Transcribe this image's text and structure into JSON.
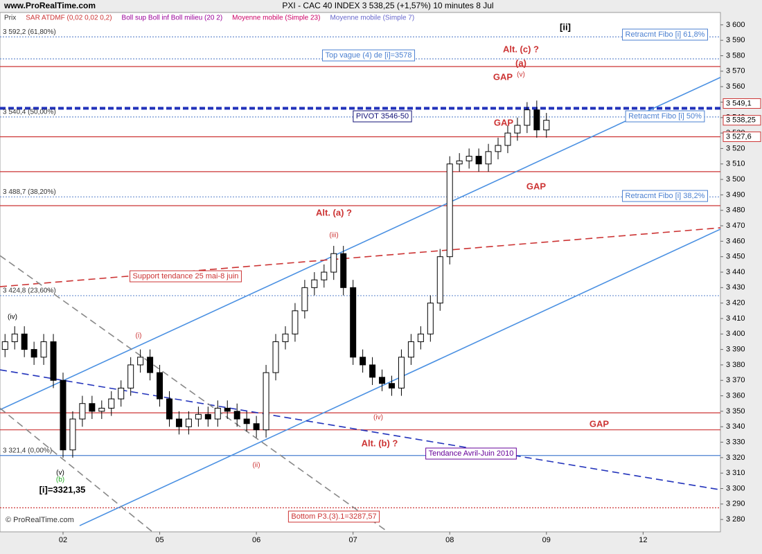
{
  "chart_data": {
    "type": "candlestick",
    "site": "www.ProRealTime.com",
    "title": "PXI - CAC 40 INDEX     3 538,25 (+1,57%)     10 minutes  8 Jul",
    "legend": [
      "Prix",
      "SAR ATDMF (0,02 0,02 0,2)",
      "Boll sup Boll inf Boll milieu (20 2)",
      "Moyenne mobile (Simple 23)",
      "Moyenne mobile (Simple 7)"
    ],
    "legend_colors": [
      "#333333",
      "#cc3333",
      "#990099",
      "#cc0066",
      "#6666cc"
    ],
    "footer": "© ProRealTime.com",
    "xlim": [
      -0.652,
      6.8
    ],
    "xticks": [
      {
        "value": 0,
        "label": "02"
      },
      {
        "value": 1,
        "label": "05"
      },
      {
        "value": 2,
        "label": "06"
      },
      {
        "value": 3,
        "label": "07"
      },
      {
        "value": 4,
        "label": "08"
      },
      {
        "value": 5,
        "label": "09"
      },
      {
        "value": 6,
        "label": "12"
      }
    ],
    "ylim": [
      3272,
      3608
    ],
    "yticks": [
      {
        "value": 3280,
        "label": "3 280"
      },
      {
        "value": 3290,
        "label": "3 290"
      },
      {
        "value": 3300,
        "label": "3 300"
      },
      {
        "value": 3310,
        "label": "3 310"
      },
      {
        "value": 3320,
        "label": "3 320"
      },
      {
        "value": 3330,
        "label": "3 330"
      },
      {
        "value": 3340,
        "label": "3 340"
      },
      {
        "value": 3350,
        "label": "3 350"
      },
      {
        "value": 3360,
        "label": "3 360"
      },
      {
        "value": 3370,
        "label": "3 370"
      },
      {
        "value": 3380,
        "label": "3 380"
      },
      {
        "value": 3390,
        "label": "3 390"
      },
      {
        "value": 3400,
        "label": "3 400"
      },
      {
        "value": 3410,
        "label": "3 410"
      },
      {
        "value": 3420,
        "label": "3 420"
      },
      {
        "value": 3430,
        "label": "3 430"
      },
      {
        "value": 3440,
        "label": "3 440"
      },
      {
        "value": 3450,
        "label": "3 450"
      },
      {
        "value": 3460,
        "label": "3 460"
      },
      {
        "value": 3470,
        "label": "3 470"
      },
      {
        "value": 3480,
        "label": "3 480"
      },
      {
        "value": 3490,
        "label": "3 490"
      },
      {
        "value": 3500,
        "label": "3 500"
      },
      {
        "value": 3510,
        "label": "3 510"
      },
      {
        "value": 3520,
        "label": "3 520"
      },
      {
        "value": 3530,
        "label": "3 530"
      },
      {
        "value": 3540,
        "label": "3 540"
      },
      {
        "value": 3550,
        "label": "3 550"
      },
      {
        "value": 3560,
        "label": "3 560"
      },
      {
        "value": 3570,
        "label": "3 570"
      },
      {
        "value": 3580,
        "label": "3 580"
      },
      {
        "value": 3590,
        "label": "3 590"
      },
      {
        "value": 3600,
        "label": "3 600"
      }
    ],
    "x": [
      -0.6,
      -0.5,
      -0.4,
      -0.3,
      -0.2,
      -0.1,
      0,
      0.1,
      0.2,
      0.3,
      0.4,
      0.5,
      0.6,
      0.7,
      0.8,
      0.9,
      1,
      1.1,
      1.2,
      1.3,
      1.4,
      1.5,
      1.6,
      1.7,
      1.8,
      1.9,
      2,
      2.1,
      2.2,
      2.3,
      2.4,
      2.5,
      2.6,
      2.7,
      2.8,
      2.9,
      3,
      3.1,
      3.2,
      3.3,
      3.4,
      3.5,
      3.6,
      3.7,
      3.8,
      3.9,
      4,
      4.1,
      4.2,
      4.3,
      4.4,
      4.5,
      4.6,
      4.7,
      4.8,
      4.9,
      5
    ],
    "open": [
      3390,
      3395,
      3400,
      3390,
      3385,
      3395,
      3370,
      3325,
      3345,
      3355,
      3350,
      3352,
      3358,
      3365,
      3380,
      3385,
      3375,
      3358,
      3345,
      3340,
      3345,
      3348,
      3345,
      3352,
      3350,
      3345,
      3342,
      3338,
      3375,
      3395,
      3400,
      3415,
      3430,
      3435,
      3440,
      3452,
      3430,
      3385,
      3380,
      3372,
      3368,
      3365,
      3385,
      3395,
      3400,
      3420,
      3450,
      3510,
      3512,
      3515,
      3510,
      3518,
      3522,
      3530,
      3535,
      3545,
      3532
    ],
    "high": [
      3400,
      3405,
      3405,
      3395,
      3400,
      3400,
      3375,
      3350,
      3360,
      3360,
      3357,
      3363,
      3370,
      3385,
      3390,
      3390,
      3380,
      3363,
      3350,
      3350,
      3353,
      3353,
      3357,
      3357,
      3355,
      3350,
      3347,
      3380,
      3400,
      3405,
      3420,
      3435,
      3440,
      3445,
      3457,
      3457,
      3435,
      3390,
      3385,
      3377,
      3373,
      3390,
      3400,
      3405,
      3425,
      3455,
      3515,
      3517,
      3520,
      3520,
      3523,
      3527,
      3535,
      3540,
      3550,
      3551,
      3543
    ],
    "low": [
      3385,
      3390,
      3385,
      3380,
      3380,
      3365,
      3320,
      3320,
      3340,
      3345,
      3345,
      3347,
      3353,
      3360,
      3375,
      3370,
      3353,
      3340,
      3335,
      3335,
      3340,
      3340,
      3340,
      3345,
      3340,
      3337,
      3333,
      3333,
      3370,
      3390,
      3395,
      3410,
      3425,
      3430,
      3435,
      3425,
      3380,
      3375,
      3367,
      3363,
      3360,
      3360,
      3380,
      3390,
      3395,
      3415,
      3445,
      3505,
      3507,
      3505,
      3505,
      3513,
      3517,
      3525,
      3530,
      3527,
      3527
    ],
    "close": [
      3395,
      3400,
      3390,
      3385,
      3395,
      3370,
      3325,
      3345,
      3355,
      3350,
      3352,
      3358,
      3365,
      3380,
      3385,
      3375,
      3358,
      3345,
      3340,
      3345,
      3348,
      3345,
      3352,
      3350,
      3345,
      3342,
      3338,
      3375,
      3395,
      3400,
      3415,
      3430,
      3435,
      3440,
      3452,
      3430,
      3385,
      3380,
      3372,
      3368,
      3365,
      3385,
      3395,
      3400,
      3420,
      3450,
      3510,
      3512,
      3515,
      3510,
      3518,
      3522,
      3530,
      3535,
      3545,
      3532,
      3538.25
    ],
    "levels": [
      {
        "value": 3592.2,
        "label": "3 592,2 (61,80%)",
        "color": "#6a8fd0",
        "style": "dotted"
      },
      {
        "value": 3578,
        "color": "#6a8fd0",
        "style": "dotted"
      },
      {
        "value": 3573,
        "color": "#cc3333",
        "style": "solid"
      },
      {
        "value": 3546,
        "color": "#2233bb",
        "style": "thick"
      },
      {
        "value": 3540.4,
        "label": "3 540,4 (50,00%)",
        "color": "#6a8fd0",
        "style": "dotted"
      },
      {
        "value": 3527.6,
        "color": "#cc3333",
        "style": "solid"
      },
      {
        "value": 3505,
        "color": "#cc3333",
        "style": "solid"
      },
      {
        "value": 3488.7,
        "label": "3 488,7 (38,20%)",
        "color": "#6a8fd0",
        "style": "dotted"
      },
      {
        "value": 3483,
        "color": "#cc3333",
        "style": "solid"
      },
      {
        "value": 3424.8,
        "label": "3 424,8 (23,60%)",
        "color": "#6a8fd0",
        "style": "dotted"
      },
      {
        "value": 3349,
        "color": "#cc3333",
        "style": "solid"
      },
      {
        "value": 3338,
        "color": "#cc3333",
        "style": "solid"
      },
      {
        "value": 3321.4,
        "label": "3 321,4 (0,00%)",
        "color": "#4a7fd0",
        "style": "solid"
      },
      {
        "value": 3287.57,
        "color": "#cc3333",
        "style": "dotted"
      }
    ],
    "trendlines": [
      {
        "x": [
          -0.652,
          6.8
        ],
        "y": [
          3351,
          3566
        ],
        "color": "#4a90e2",
        "style": "solid"
      },
      {
        "x": [
          0.172,
          6.8
        ],
        "y": [
          3276,
          3467.8
        ],
        "color": "#4a90e2",
        "style": "solid"
      },
      {
        "x": [
          -0.652,
          6.8
        ],
        "y": [
          3430.6,
          3468.7
        ],
        "color": "#cc3333",
        "style": "dashed"
      },
      {
        "x": [
          -0.652,
          6.8
        ],
        "y": [
          3376.8,
          3299.2
        ],
        "color": "#2233bb",
        "style": "dashed"
      },
      {
        "x": [
          -0.652,
          3.36
        ],
        "y": [
          3450.7,
          3272
        ],
        "color": "#888888",
        "style": "dashed"
      },
      {
        "x": [
          -0.652,
          0.925
        ],
        "y": [
          3352,
          3272
        ],
        "color": "#888888",
        "style": "dashed"
      }
    ],
    "price_boxes": [
      {
        "value": 3549.1,
        "label": "3 549,1",
        "color": "#cc3333"
      },
      {
        "value": 3538.25,
        "label": "3 538,25",
        "color": "#cc3333"
      },
      {
        "value": 3527.6,
        "label": "3 527,6",
        "color": "#cc3333"
      }
    ],
    "annotations": [
      {
        "text": "[ii]",
        "color": "#000000"
      },
      {
        "text": "Retracmt Fibo [i] 61,8%",
        "color": "#4a7fd0",
        "box": true
      },
      {
        "text": "Top vague (4) de [i]=3578",
        "color": "#4a7fd0",
        "box": true
      },
      {
        "text": "Alt. (c) ?",
        "color": "#cc3333"
      },
      {
        "text": "(a)",
        "color": "#cc3333"
      },
      {
        "text": "GAP",
        "color": "#cc3333"
      },
      {
        "text": "(v)",
        "color": "#cc3333"
      },
      {
        "text": "PIVOT 3546-50",
        "color": "#111177",
        "box": true
      },
      {
        "text": "GAP",
        "color": "#cc3333"
      },
      {
        "text": "Retracmt Fibo [i] 50%",
        "color": "#4a7fd0",
        "box": true
      },
      {
        "text": "GAP",
        "color": "#cc3333"
      },
      {
        "text": "Retracmt Fibo [i] 38,2%",
        "color": "#4a7fd0",
        "box": true
      },
      {
        "text": "Alt. (a) ?",
        "color": "#cc3333"
      },
      {
        "text": "(iii)",
        "color": "#cc3333"
      },
      {
        "text": "Support tendance 25 mai-8 juin",
        "color": "#cc3333",
        "box": true
      },
      {
        "text": "(iv)",
        "color": "#000000"
      },
      {
        "text": "(i)",
        "color": "#cc3333"
      },
      {
        "text": "GAP",
        "color": "#cc3333"
      },
      {
        "text": "Alt. (b) ?",
        "color": "#cc3333"
      },
      {
        "text": "Tendance Avril-Juin 2010",
        "color": "#660099",
        "box": true
      },
      {
        "text": "(iv)",
        "color": "#cc3333"
      },
      {
        "text": "(ii)",
        "color": "#cc3333"
      },
      {
        "text": "(v)",
        "color": "#000000"
      },
      {
        "text": "(b)",
        "color": "#22aa22"
      },
      {
        "text": "[i]=3321,35",
        "color": "#000000"
      },
      {
        "text": "Bottom P3.(3).1=3287,57",
        "color": "#cc3333",
        "box": true
      }
    ]
  }
}
